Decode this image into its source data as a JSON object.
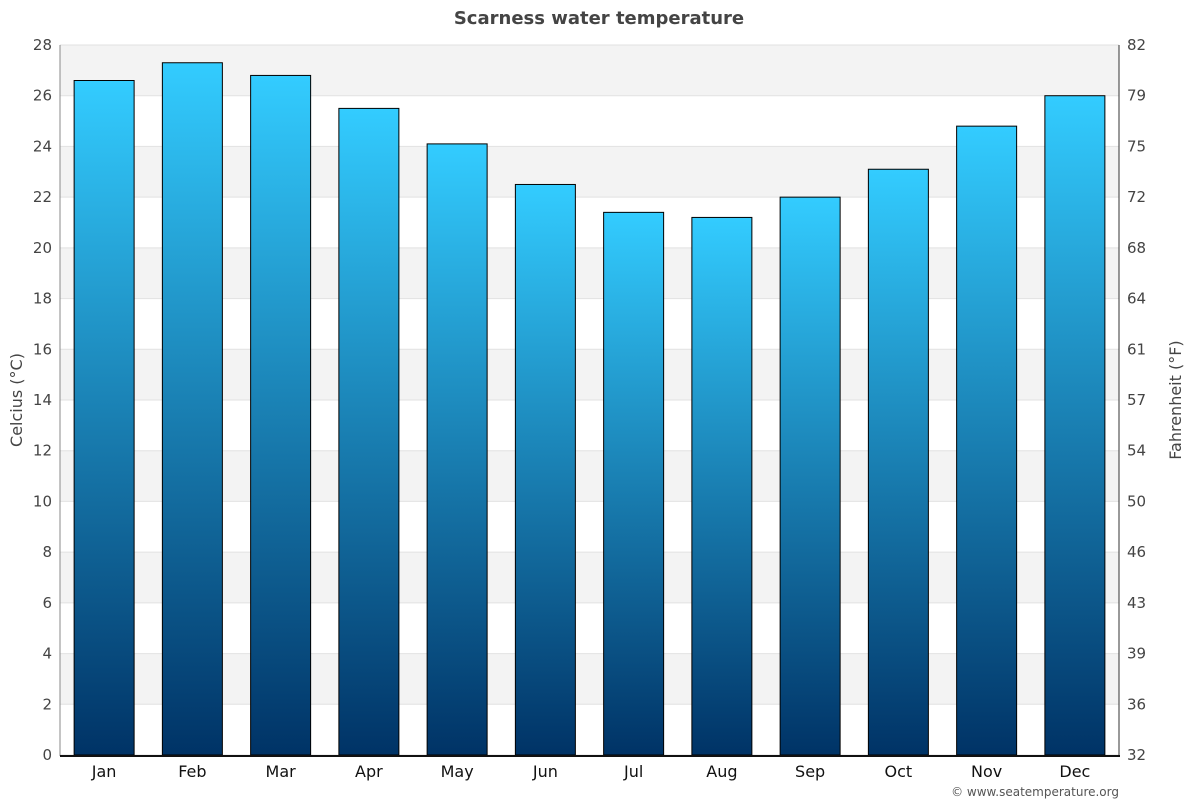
{
  "chart_data": {
    "type": "bar",
    "title": "Scarness water temperature",
    "ylabel": "Celcius (°C)",
    "ylabel_right": "Fahrenheit (°F)",
    "categories": [
      "Jan",
      "Feb",
      "Mar",
      "Apr",
      "May",
      "Jun",
      "Jul",
      "Aug",
      "Sep",
      "Oct",
      "Nov",
      "Dec"
    ],
    "values": [
      26.6,
      27.3,
      26.8,
      25.5,
      24.1,
      22.5,
      21.4,
      21.2,
      22.0,
      23.1,
      24.8,
      26.0
    ],
    "ylim": [
      0,
      28
    ],
    "yticks": [
      0,
      2,
      4,
      6,
      8,
      10,
      12,
      14,
      16,
      18,
      20,
      22,
      24,
      26,
      28
    ],
    "yticks_right": [
      "32",
      "36",
      "39",
      "43",
      "46",
      "50",
      "54",
      "57",
      "61",
      "64",
      "68",
      "72",
      "75",
      "79",
      "82"
    ],
    "grid": true,
    "colors": {
      "bar_top": "#33ccff",
      "bar_bottom": "#003366",
      "stripe": "#f3f3f3"
    }
  },
  "credit": "© www.seatemperature.org"
}
